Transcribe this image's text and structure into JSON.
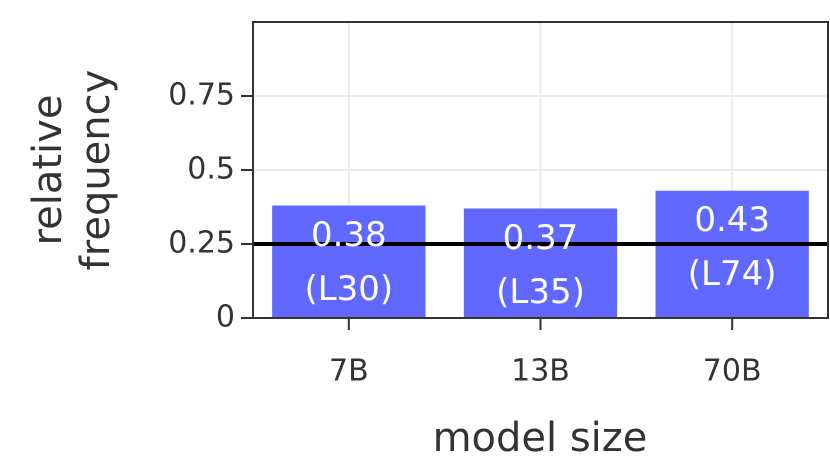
{
  "chart_data": {
    "type": "bar",
    "xlabel": "model size",
    "ylabel": [
      "relative",
      "frequency"
    ],
    "categories": [
      "7B",
      "13B",
      "70B"
    ],
    "values": [
      0.38,
      0.37,
      0.43
    ],
    "value_labels": [
      "0.38",
      "0.37",
      "0.43"
    ],
    "bar_labels": [
      "(L30)",
      "(L35)",
      "(L74)"
    ],
    "color": "#6068ff",
    "hline": 0.25,
    "ylim": [
      0,
      1.0
    ],
    "yticks": [
      0,
      0.25,
      0.5,
      0.75
    ],
    "grid": true
  }
}
